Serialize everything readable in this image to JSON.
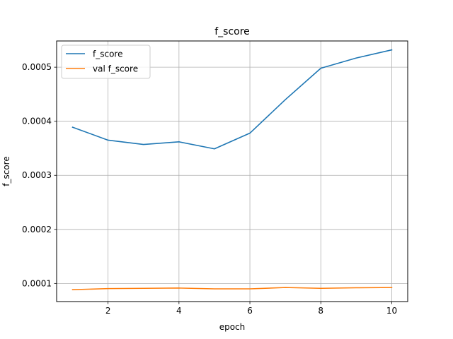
{
  "chart_data": {
    "type": "line",
    "title": "f_score",
    "xlabel": "epoch",
    "ylabel": "f_score",
    "xlim": [
      0.55,
      10.45
    ],
    "ylim": [
      6.65e-05,
      0.0005485
    ],
    "grid": true,
    "legend_position": "top-left",
    "xticks": [
      2,
      4,
      6,
      8,
      10
    ],
    "xtick_labels": [
      "2",
      "4",
      "6",
      "8",
      "10"
    ],
    "yticks": [
      0.0001,
      0.0002,
      0.0003,
      0.0004,
      0.0005
    ],
    "ytick_labels": [
      "0.0001",
      "0.0002",
      "0.0003",
      "0.0004",
      "0.0005"
    ],
    "x": [
      1,
      2,
      3,
      4,
      5,
      6,
      7,
      8,
      9,
      10
    ],
    "series": [
      {
        "name": "f_score",
        "color": "#1f77b4",
        "values": [
          0.000389,
          0.000365,
          0.000357,
          0.000362,
          0.000349,
          0.000378,
          0.00044,
          0.000498,
          0.000517,
          0.000532
        ]
      },
      {
        "name": "val f_score",
        "color": "#ff7f0e",
        "values": [
          8.85e-05,
          9.05e-05,
          9.1e-05,
          9.15e-05,
          9e-05,
          9e-05,
          9.25e-05,
          9.1e-05,
          9.2e-05,
          9.25e-05
        ]
      }
    ]
  }
}
